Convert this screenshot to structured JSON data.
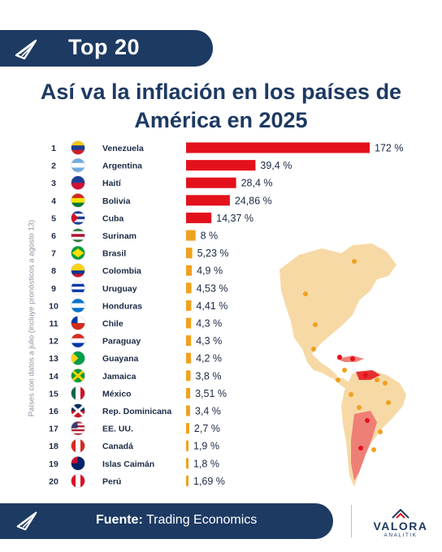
{
  "header": {
    "label": "Top 20"
  },
  "title_line1": "Así va la inflación en los países de",
  "title_line2": "América en 2025",
  "side_note": "Países con datos a julio (incluye pronósticos a agosto 13)",
  "colors": {
    "navy": "#1d3a63",
    "red": "#e3111b",
    "orange": "#f0a11f",
    "map_land": "#f7d9a6",
    "map_red": "#ee7f77"
  },
  "chart_data": {
    "type": "bar",
    "orientation": "horizontal",
    "ranks": [
      1,
      2,
      3,
      4,
      5,
      6,
      7,
      8,
      9,
      10,
      11,
      12,
      13,
      14,
      15,
      16,
      17,
      18,
      19,
      20
    ],
    "categories": [
      "Venezuela",
      "Argentina",
      "Haití",
      "Bolivia",
      "Cuba",
      "Surinam",
      "Brasil",
      "Colombia",
      "Uruguay",
      "Honduras",
      "Chile",
      "Paraguay",
      "Guayana",
      "Jamaica",
      "México",
      "Rep. Dominicana",
      "EE. UU.",
      "Canadá",
      "Islas Caimán",
      "Perú"
    ],
    "values": [
      172,
      39.4,
      28.4,
      24.86,
      14.37,
      8,
      5.23,
      4.9,
      4.53,
      4.41,
      4.3,
      4.3,
      4.2,
      3.8,
      3.51,
      3.4,
      2.7,
      1.9,
      1.8,
      1.69
    ],
    "value_labels": [
      "172 %",
      "39,4 %",
      "28,4 %",
      "24,86 %",
      "14,37 %",
      "8 %",
      "5,23 %",
      "4,9 %",
      "4,53 %",
      "4,41 %",
      "4,3 %",
      "4,3 %",
      "4,2 %",
      "3,8 %",
      "3,51 %",
      "3,4 %",
      "2,7 %",
      "1,9 %",
      "1,8 %",
      "1,69 %"
    ],
    "bar_colors": [
      "#e3111b",
      "#e3111b",
      "#e3111b",
      "#e3111b",
      "#e3111b",
      "#f0a11f",
      "#f0a11f",
      "#f0a11f",
      "#f0a11f",
      "#f0a11f",
      "#f0a11f",
      "#f0a11f",
      "#f0a11f",
      "#f0a11f",
      "#f0a11f",
      "#f0a11f",
      "#f0a11f",
      "#f0a11f",
      "#f0a11f",
      "#f0a11f"
    ],
    "flags": [
      "venezuela-flag",
      "argentina-flag",
      "haiti-flag",
      "bolivia-flag",
      "cuba-flag",
      "surinam-flag",
      "brasil-flag",
      "colombia-flag",
      "uruguay-flag",
      "honduras-flag",
      "chile-flag",
      "paraguay-flag",
      "guayana-flag",
      "jamaica-flag",
      "mexico-flag",
      "rep-dominicana-flag",
      "ee-uu-flag",
      "canada-flag",
      "islas-caiman-flag",
      "peru-flag"
    ]
  },
  "footer": {
    "source_label": "Fuente:",
    "source_value": "Trading Economics"
  },
  "brand": {
    "name": "VALORA",
    "sub": "ANALITIK"
  }
}
